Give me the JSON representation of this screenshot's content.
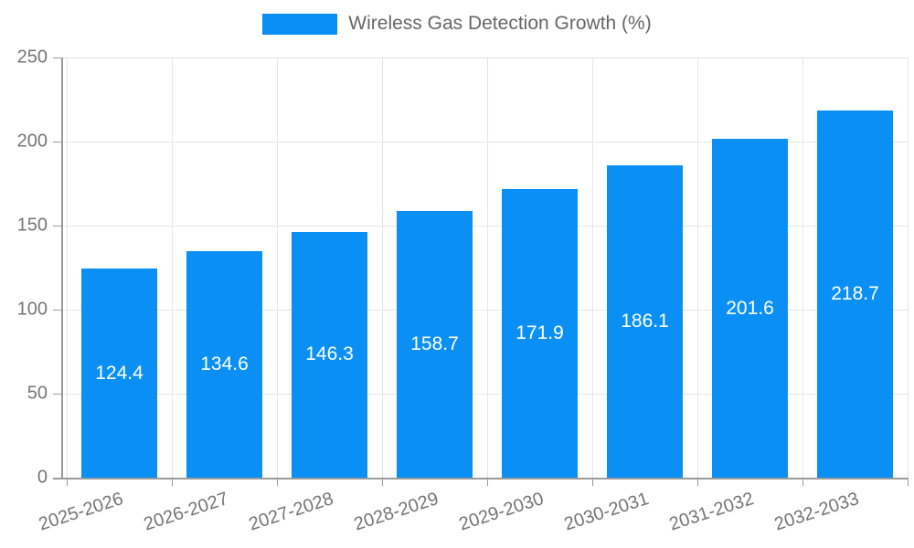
{
  "chart_data": {
    "type": "bar",
    "title": "",
    "legend": {
      "label": "Wireless Gas Detection Growth (%)",
      "position": "top"
    },
    "categories": [
      "2025-2026",
      "2026-2027",
      "2027-2028",
      "2028-2029",
      "2029-2030",
      "2030-2031",
      "2031-2032",
      "2032-2033"
    ],
    "values": [
      124.4,
      134.6,
      146.3,
      158.7,
      171.9,
      186.1,
      201.6,
      218.7
    ],
    "value_labels": [
      "124.4",
      "134.6",
      "146.3",
      "158.7",
      "171.9",
      "186.1",
      "201.6",
      "218.7"
    ],
    "xlabel": "",
    "ylabel": "",
    "ylim": [
      0,
      250
    ],
    "yticks": [
      0,
      50,
      100,
      150,
      200,
      250
    ],
    "ytick_labels": [
      "0",
      "50",
      "100",
      "150",
      "200",
      "250"
    ],
    "grid": true,
    "colors": {
      "bar": "#0a90f5",
      "value_label": "#ffffff",
      "axis_line": "#9a9a9a",
      "gridline": "#e5e5e5",
      "tick_text": "#757575",
      "legend_text": "#666666",
      "background": "#ffffff"
    }
  }
}
